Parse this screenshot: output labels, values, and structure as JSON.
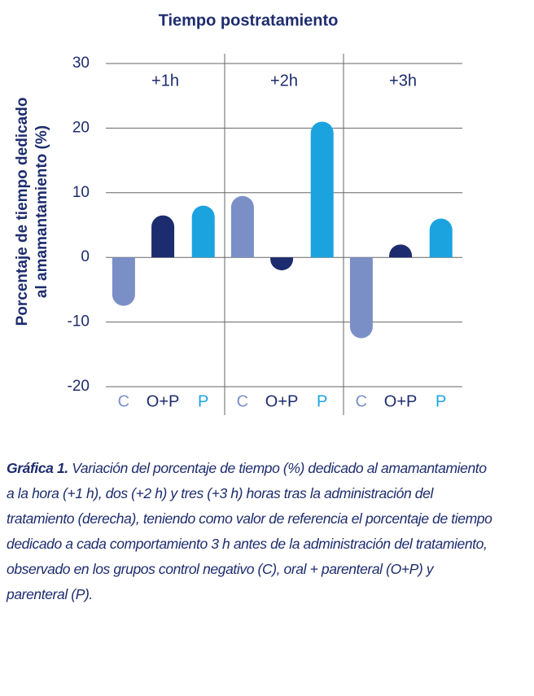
{
  "chart_data": {
    "type": "bar",
    "title": "Tiempo postratamiento",
    "y_label": [
      "Porcentaje de tiempo dedicado",
      "al amamantamiento (%)"
    ],
    "categories": [
      "+1h",
      "+2h",
      "+3h"
    ],
    "series": [
      {
        "name": "C",
        "color": "#7b8fc7",
        "values": [
          -7.5,
          9.5,
          -12.5
        ]
      },
      {
        "name": "O+P",
        "color": "#1d2c6e",
        "values": [
          6.5,
          -2,
          2
        ]
      },
      {
        "name": "P",
        "color": "#1ba3e0",
        "values": [
          8,
          21,
          6
        ]
      }
    ],
    "ylim": [
      -20,
      30
    ],
    "yticks": [
      -20,
      -10,
      0,
      10,
      20,
      30
    ],
    "grid": true
  },
  "caption": {
    "label": "Gráfica 1.",
    "text": "Variación del porcentaje de tiempo (%) dedicado al amamantamiento a la hora (+1 h), dos (+2 h) y tres (+3 h) horas tras la administración del tratamiento (derecha), teniendo como valor de referencia el porcentaje de tiempo dedicado a cada comportamiento 3 h antes de la administración del tratamiento, observado en los grupos control negativo (C), oral + parenteral (O+P) y parenteral (P)."
  }
}
